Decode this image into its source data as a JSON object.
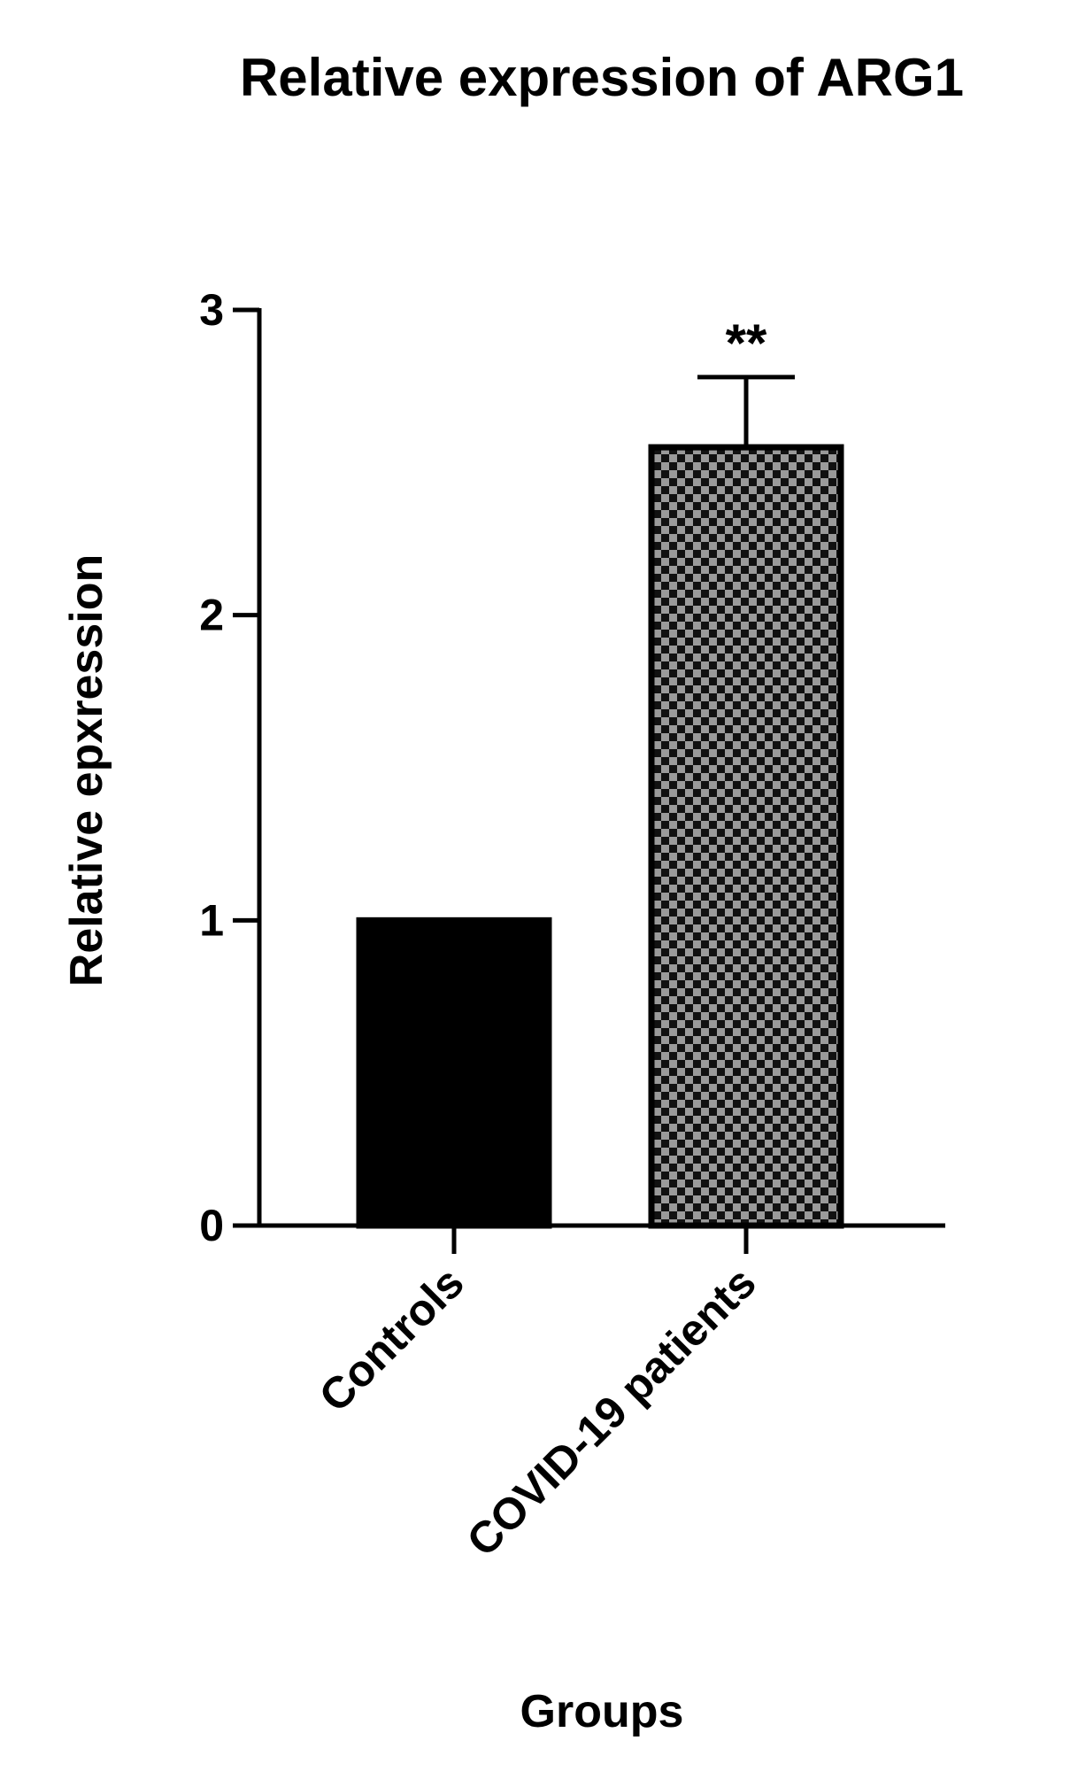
{
  "chart_data": {
    "type": "bar",
    "title": "Relative expression of ARG1",
    "xlabel": "Groups",
    "ylabel": "Relative epxression",
    "categories": [
      "Controls",
      "COVID-19 patients"
    ],
    "values": [
      1.0,
      2.55
    ],
    "error_upper": [
      0,
      0.23
    ],
    "significance": [
      "",
      "**"
    ],
    "ylim": [
      0,
      3
    ],
    "yticks": [
      {
        "value": 0,
        "label": "0"
      },
      {
        "value": 1,
        "label": "1"
      },
      {
        "value": 2,
        "label": "2"
      },
      {
        "value": 3,
        "label": "3"
      }
    ],
    "bar_styles": [
      "solid-black",
      "checkered-black-gray"
    ],
    "colors": {
      "solid": "#000000",
      "check_dark": "#111111",
      "check_light": "#9a9a9a",
      "axis": "#000000"
    },
    "grid": false,
    "legend": "none"
  }
}
